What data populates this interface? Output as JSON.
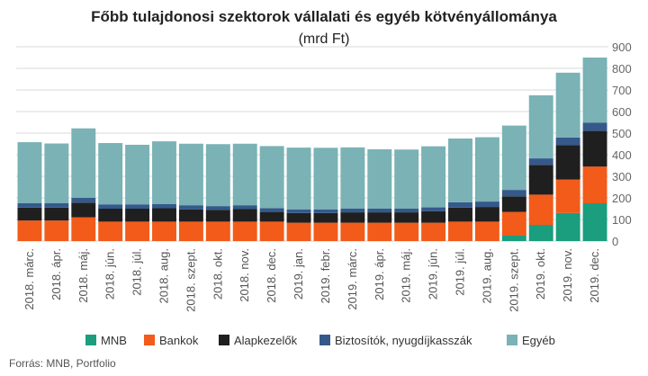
{
  "chart_data": {
    "type": "bar",
    "stacked": true,
    "title": "Főbb tulajdonosi szektorok vállalati  és egyéb kötvényállománya",
    "subtitle": "(mrd Ft)",
    "source": "Forrás: MNB, Portfolio",
    "categories": [
      "2018. márc.",
      "2018. ápr.",
      "2018. máj.",
      "2018. jún.",
      "2018. júl.",
      "2018. aug.",
      "2018. szept.",
      "2018. okt.",
      "2018. nov.",
      "2018. dec.",
      "2019. jan.",
      "2019. febr.",
      "2019. márc.",
      "2019. ápr.",
      "2019. máj.",
      "2019. jún.",
      "2019. júl.",
      "2019. aug.",
      "2019. szept.",
      "2019. okt.",
      "2019. nov.",
      "2019. dec."
    ],
    "ylim": [
      0,
      900
    ],
    "yticks": [
      0,
      100,
      200,
      300,
      400,
      500,
      600,
      700,
      800,
      900
    ],
    "y_axis_side": "right",
    "grid": true,
    "legend_position": "bottom",
    "series": [
      {
        "name": "MNB",
        "color": "#1a9e7e",
        "values": [
          0,
          0,
          0,
          0,
          0,
          0,
          0,
          0,
          0,
          0,
          0,
          0,
          0,
          0,
          0,
          0,
          0,
          0,
          25,
          75,
          130,
          175
        ]
      },
      {
        "name": "Bankok",
        "color": "#f25b1a",
        "values": [
          95,
          95,
          110,
          90,
          90,
          90,
          90,
          90,
          90,
          90,
          85,
          85,
          85,
          85,
          85,
          85,
          90,
          90,
          110,
          140,
          155,
          170
        ]
      },
      {
        "name": "Alapkezelők",
        "color": "#1f1f1f",
        "values": [
          60,
          60,
          68,
          60,
          60,
          62,
          57,
          55,
          58,
          45,
          45,
          45,
          48,
          48,
          48,
          53,
          65,
          68,
          72,
          138,
          160,
          165
        ]
      },
      {
        "name": "Biztosítók, nyugdíjkasszák",
        "color": "#34598a",
        "values": [
          20,
          20,
          22,
          20,
          20,
          20,
          19,
          17,
          18,
          17,
          17,
          17,
          17,
          17,
          17,
          18,
          25,
          25,
          30,
          30,
          35,
          38
        ]
      },
      {
        "name": "Egyéb",
        "color": "#7ab2b5",
        "values": [
          283,
          277,
          322,
          284,
          276,
          290,
          285,
          287,
          285,
          288,
          286,
          285,
          284,
          275,
          274,
          283,
          295,
          298,
          298,
          292,
          300,
          302
        ]
      }
    ]
  }
}
